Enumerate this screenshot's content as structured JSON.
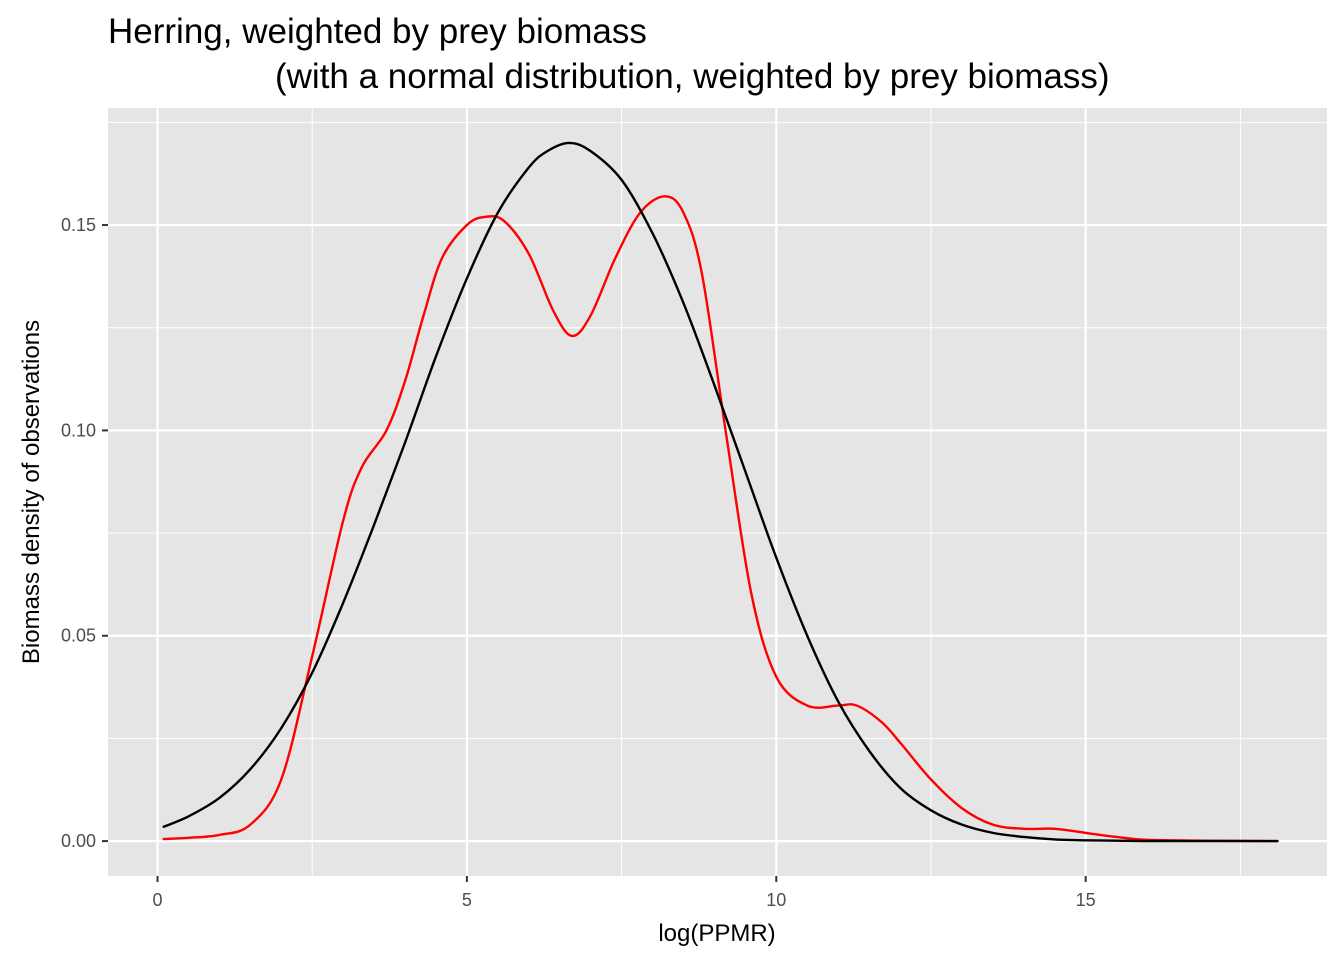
{
  "chart_data": {
    "type": "line",
    "title_line1": "Herring, weighted by prey biomass",
    "title_line2": "(with a normal distribution, weighted by prey biomass)",
    "xlabel": "log(PPMR)",
    "ylabel": "Biomass density of observations",
    "xlim": [
      -0.8,
      18.9
    ],
    "ylim": [
      -0.0085,
      0.1785
    ],
    "x_ticks": [
      0,
      5,
      10,
      15
    ],
    "x_tick_labels": [
      "0",
      "5",
      "10",
      "15"
    ],
    "y_ticks": [
      0.0,
      0.05,
      0.1,
      0.15
    ],
    "y_tick_labels": [
      "0.00",
      "0.05",
      "0.10",
      "0.15"
    ],
    "grid": true,
    "legend": "none",
    "colors": {
      "panel": "#e5e5e5",
      "grid": "#ffffff",
      "kde": "#ff0000",
      "normal": "#000000"
    },
    "series": [
      {
        "color": "#ff0000",
        "x": [
          0.1,
          0.5,
          1.0,
          1.5,
          2.0,
          2.5,
          3.0,
          3.3,
          3.7,
          4.0,
          4.3,
          4.6,
          5.0,
          5.3,
          5.6,
          6.0,
          6.4,
          6.7,
          7.0,
          7.4,
          7.8,
          8.2,
          8.5,
          8.8,
          9.2,
          9.6,
          10.0,
          10.5,
          11.0,
          11.3,
          11.7,
          12.0,
          12.5,
          13.0,
          13.5,
          14.0,
          14.5,
          15.0,
          15.5,
          16.0,
          17.0,
          18.1
        ],
        "y": [
          0.0005,
          0.0008,
          0.0015,
          0.004,
          0.015,
          0.045,
          0.078,
          0.091,
          0.1,
          0.112,
          0.128,
          0.142,
          0.15,
          0.152,
          0.151,
          0.143,
          0.129,
          0.123,
          0.128,
          0.142,
          0.153,
          0.157,
          0.153,
          0.138,
          0.098,
          0.06,
          0.04,
          0.033,
          0.033,
          0.033,
          0.029,
          0.024,
          0.015,
          0.008,
          0.004,
          0.003,
          0.003,
          0.002,
          0.001,
          0.0003,
          0.0001,
          0.0
        ]
      },
      {
        "color": "#000000",
        "x": [
          0.1,
          0.5,
          1.0,
          1.5,
          2.0,
          2.5,
          3.0,
          3.5,
          4.0,
          4.5,
          5.0,
          5.5,
          6.0,
          6.3,
          6.65,
          7.0,
          7.5,
          8.0,
          8.5,
          9.0,
          9.5,
          10.0,
          10.5,
          11.0,
          11.5,
          12.0,
          12.5,
          13.0,
          13.5,
          14.0,
          14.5,
          15.0,
          15.5,
          16.0,
          17.0,
          18.1
        ],
        "y": [
          0.0035,
          0.006,
          0.0105,
          0.0175,
          0.0275,
          0.041,
          0.058,
          0.077,
          0.097,
          0.118,
          0.137,
          0.153,
          0.164,
          0.168,
          0.17,
          0.168,
          0.161,
          0.148,
          0.131,
          0.111,
          0.09,
          0.069,
          0.05,
          0.034,
          0.022,
          0.013,
          0.0075,
          0.004,
          0.002,
          0.001,
          0.0004,
          0.0002,
          0.0001,
          0.0,
          0.0,
          0.0
        ]
      }
    ]
  }
}
